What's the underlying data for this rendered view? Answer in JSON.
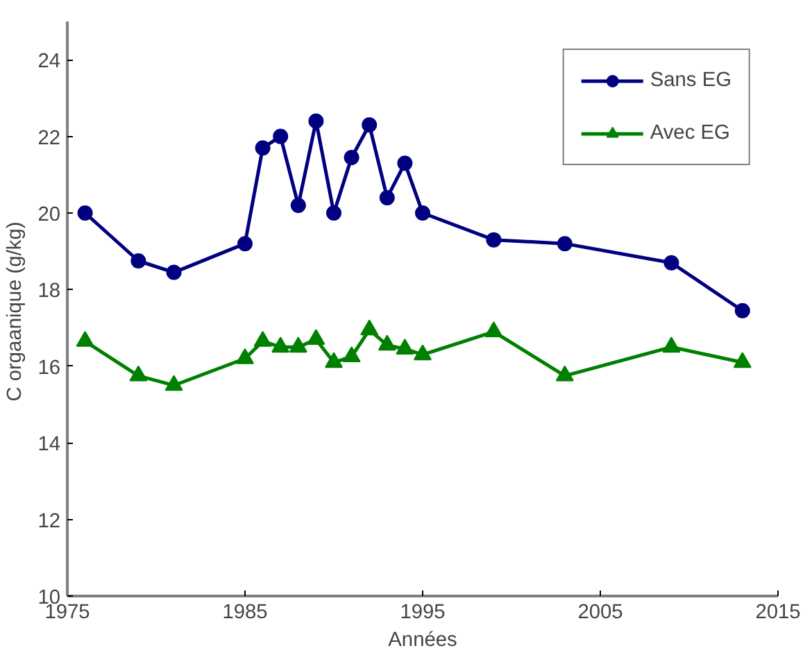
{
  "chart_data": {
    "type": "line",
    "xlabel": "Années",
    "ylabel": "C orgaanique  (g/kg)",
    "x": [
      1976,
      1979,
      1981,
      1985,
      1986,
      1987,
      1988,
      1989,
      1990,
      1991,
      1992,
      1993,
      1994,
      1995,
      1999,
      2003,
      2009,
      2013
    ],
    "series": [
      {
        "name": "Sans EG",
        "color": "#000080",
        "marker": "circle",
        "values": [
          20.0,
          18.75,
          18.45,
          19.2,
          21.7,
          22.0,
          20.2,
          22.4,
          20.0,
          21.45,
          22.3,
          20.4,
          21.3,
          20.0,
          19.3,
          19.2,
          18.7,
          17.45
        ]
      },
      {
        "name": "Avec EG",
        "color": "#008000",
        "marker": "triangle",
        "values": [
          16.65,
          15.75,
          15.5,
          16.2,
          16.65,
          16.5,
          16.5,
          16.7,
          16.1,
          16.25,
          16.95,
          16.55,
          16.45,
          16.3,
          16.9,
          15.75,
          16.5,
          16.1
        ]
      }
    ],
    "xlim": [
      1975,
      2015
    ],
    "xticks": [
      1975,
      1985,
      1995,
      2005,
      2015
    ],
    "ylim": [
      10,
      25
    ],
    "yticks": [
      10,
      12,
      14,
      16,
      18,
      20,
      22,
      24
    ],
    "grid": false,
    "legend": "top right",
    "line_style": "solid"
  }
}
